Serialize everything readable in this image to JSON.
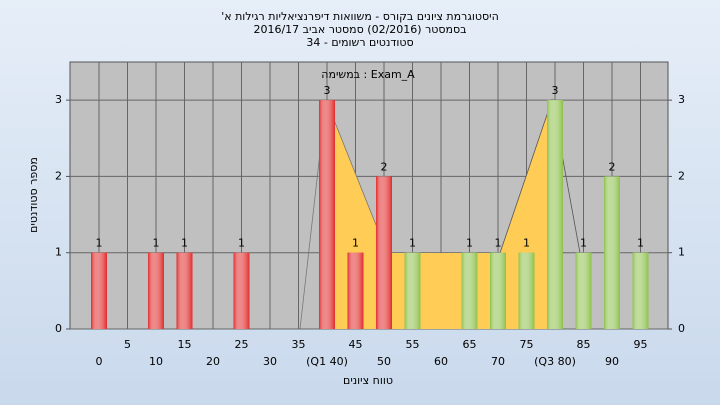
{
  "chart_data": {
    "type": "bar",
    "title": "היסטוגרמת ציונים בקורס - משוואות דיפרנציאליות רגילות א'",
    "subtitle": "בסמסטר  (02/2016)  סמסטר אביב 2016/17",
    "subtitle2": "סטודנטים רשומים - 34",
    "annotation": "Exam_A : במשימה",
    "x_label": "טווח ציונים",
    "y_label": "מספר סטודנטים",
    "categories": [
      "0",
      "5",
      "10",
      "15",
      "20",
      "25",
      "30",
      "35",
      "(Q1 40)",
      "45",
      "50",
      "55",
      "60",
      "65",
      "70",
      "75",
      "(Q3 80)",
      "85",
      "90",
      "95"
    ],
    "values": [
      1,
      0,
      1,
      1,
      0,
      1,
      0,
      0,
      3,
      1,
      2,
      1,
      0,
      1,
      1,
      1,
      3,
      1,
      2,
      1
    ],
    "colors": [
      "#e02828",
      "#e02828",
      "#e02828",
      "#e02828",
      "#e02828",
      "#e02828",
      "#e02828",
      "#e02828",
      "#e02828",
      "#e02828",
      "#e02828",
      "#8cc04a",
      "#8cc04a",
      "#8cc04a",
      "#8cc04a",
      "#8cc04a",
      "#8cc04a",
      "#8cc04a",
      "#8cc04a",
      "#8cc04a"
    ],
    "ylim": [
      0,
      3.5
    ],
    "yticks": [
      0,
      1,
      2,
      3
    ],
    "grid": true
  }
}
